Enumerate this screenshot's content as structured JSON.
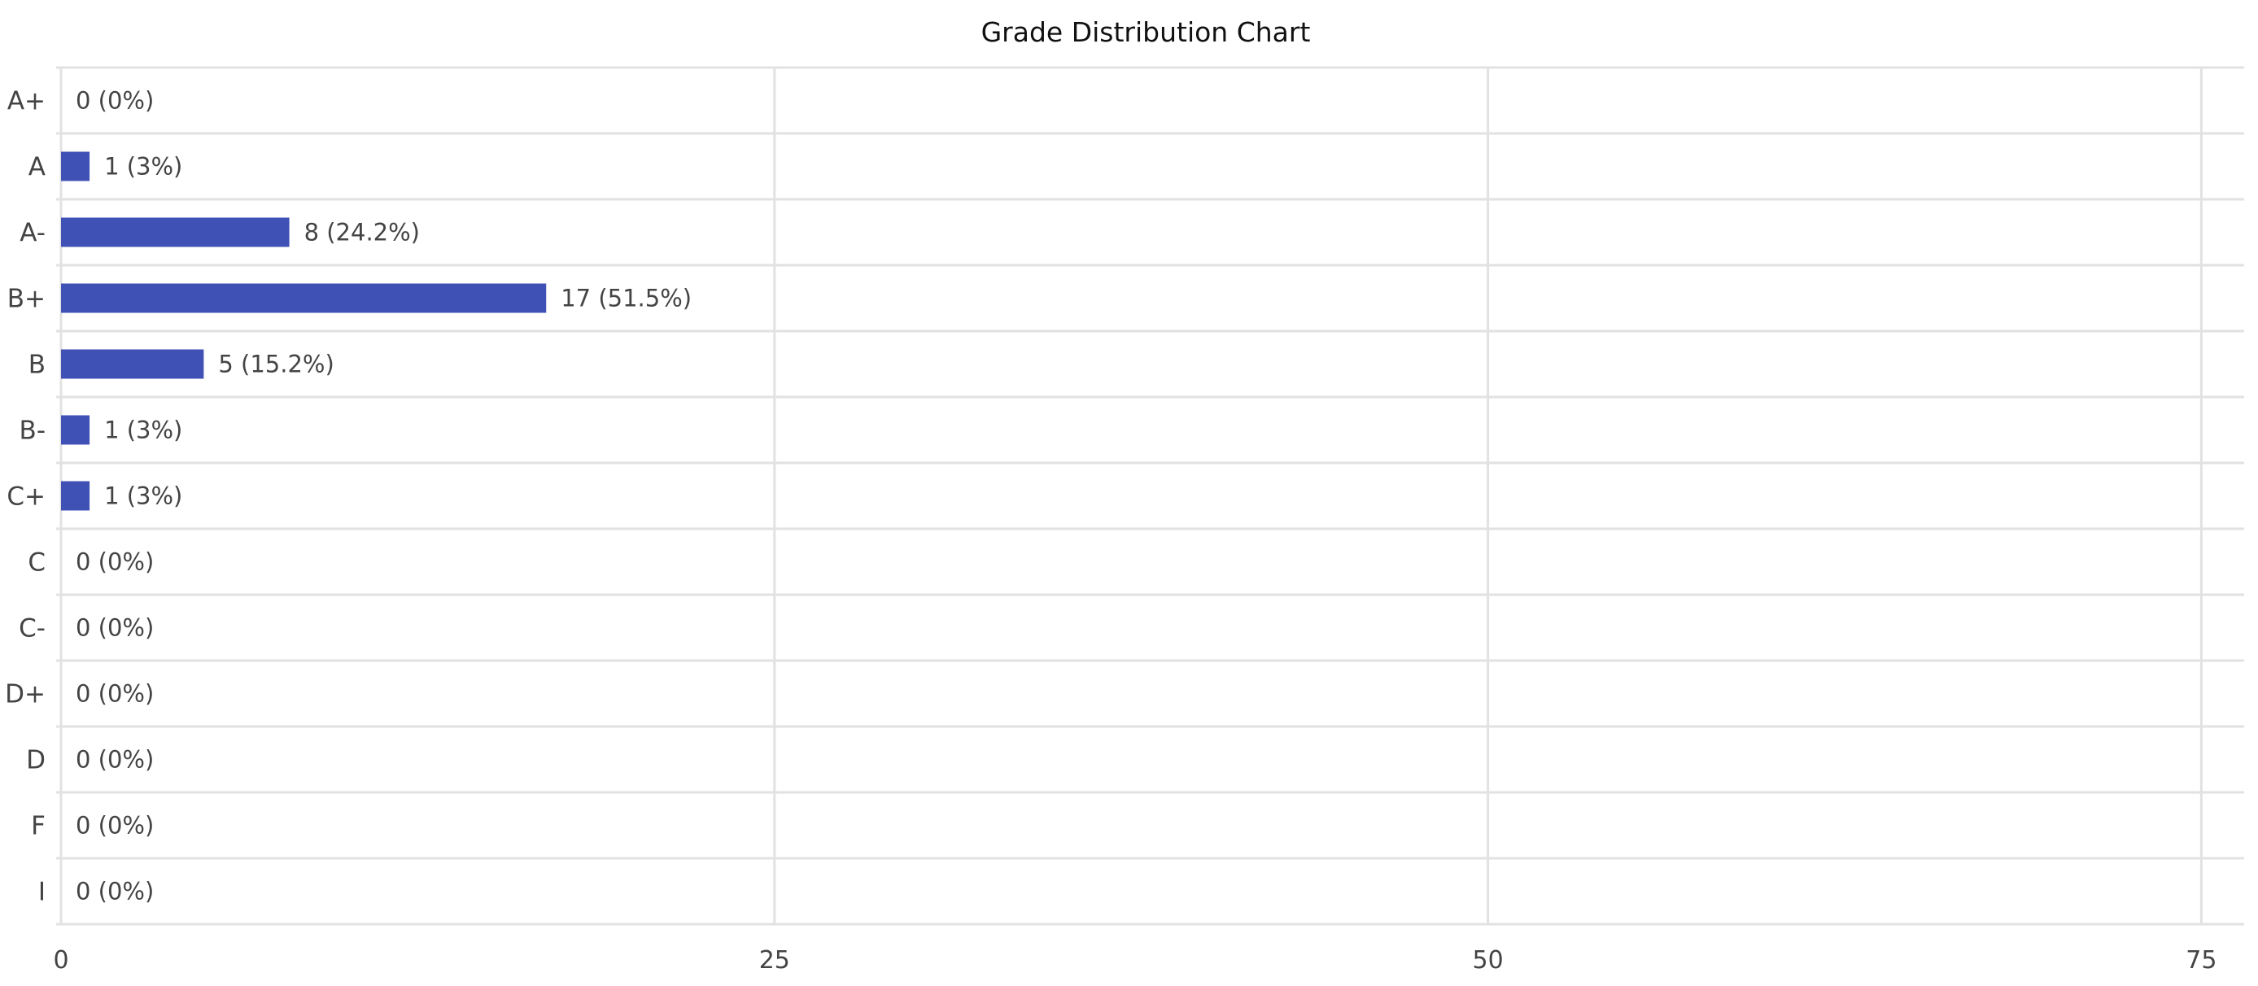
{
  "chart_data": {
    "type": "bar",
    "orientation": "horizontal",
    "title": "Grade Distribution Chart",
    "xlabel": "",
    "ylabel": "",
    "categories": [
      "A+",
      "A",
      "A-",
      "B+",
      "B",
      "B-",
      "C+",
      "C",
      "C-",
      "D+",
      "D",
      "F",
      "I"
    ],
    "values": [
      0,
      1,
      8,
      17,
      5,
      1,
      1,
      0,
      0,
      0,
      0,
      0,
      0
    ],
    "data_labels": [
      "0 (0%)",
      "1 (3%)",
      "8 (24.2%)",
      "17 (51.5%)",
      "5 (15.2%)",
      "1 (3%)",
      "1 (3%)",
      "0 (0%)",
      "0 (0%)",
      "0 (0%)",
      "0 (0%)",
      "0 (0%)",
      "0 (0%)"
    ],
    "xlim": [
      0,
      76.5
    ],
    "xticks": [
      0,
      25,
      50,
      75
    ],
    "grid": true,
    "legend": "none",
    "bar_color": "#3f51b5"
  }
}
